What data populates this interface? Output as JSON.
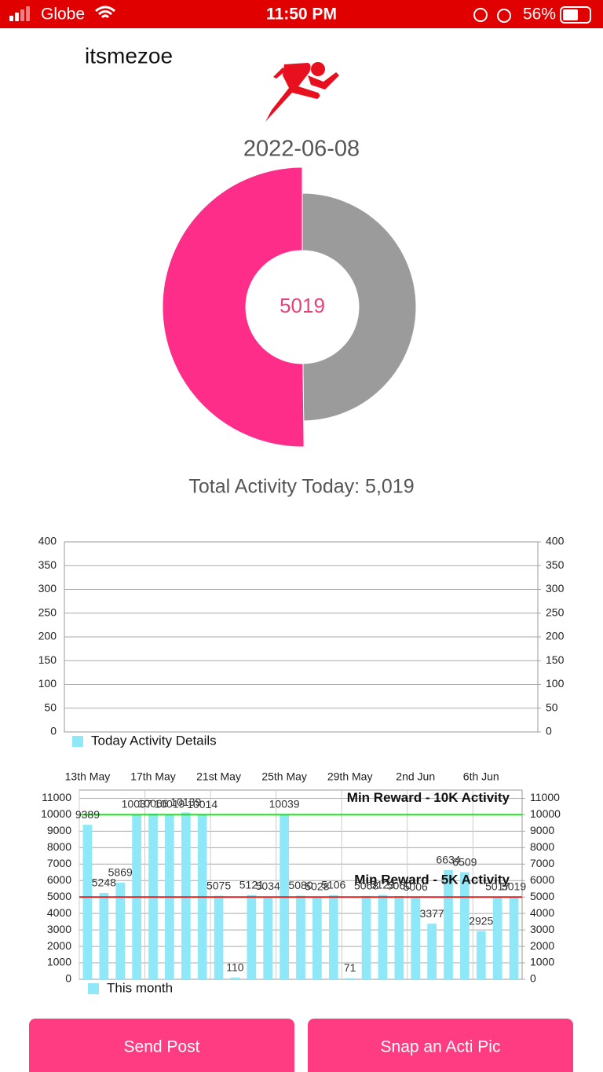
{
  "status_bar": {
    "carrier": "Globe",
    "time": "11:50 PM",
    "battery": "56%"
  },
  "header": {
    "username": "itsmezoe",
    "date": "2022-06-08"
  },
  "summary": "Total Activity Today: 5,019",
  "chart_data": [
    {
      "type": "pie",
      "donut": true,
      "values": [
        5019,
        4981
      ],
      "colors": [
        "#ff2d8a",
        "#9b9b9b"
      ]
    },
    {
      "type": "bar",
      "series": [
        {
          "name": "Today Activity Details",
          "color": "#8ee8f8",
          "values": []
        }
      ],
      "ylim": [
        0,
        400
      ],
      "yticks": [
        0,
        50,
        100,
        150,
        200,
        250,
        300,
        350,
        400
      ],
      "y2lim": [
        0,
        400
      ],
      "y2ticks": [
        0,
        50,
        100,
        150,
        200,
        250,
        300,
        350,
        400
      ],
      "grid": true
    },
    {
      "type": "bar",
      "categories": [
        "13th May",
        null,
        null,
        null,
        "17th May",
        null,
        null,
        null,
        "21st May",
        null,
        null,
        null,
        "25th May",
        null,
        null,
        null,
        "29th May",
        null,
        null,
        null,
        "2nd Jun",
        null,
        null,
        null,
        "6th Jun",
        null,
        null
      ],
      "series": [
        {
          "name": "This month",
          "color": "#8ee8f8",
          "values": [
            9389,
            5248,
            5869,
            10037,
            10066,
            10019,
            10139,
            10014,
            5075,
            110,
            5121,
            5034,
            10039,
            5080,
            5028,
            5106,
            71,
            5068,
            5123,
            5060,
            5006,
            3377,
            6634,
            6509,
            2925,
            5017,
            5019
          ]
        }
      ],
      "ylim": [
        0,
        11500
      ],
      "yticks": [
        0,
        1000,
        2000,
        3000,
        4000,
        5000,
        6000,
        7000,
        8000,
        9000,
        10000,
        11000
      ],
      "y2lim": [
        0,
        11500
      ],
      "y2ticks": [
        0,
        1000,
        2000,
        3000,
        4000,
        5000,
        6000,
        7000,
        8000,
        9000,
        10000,
        11000
      ],
      "reference_lines": [
        {
          "value": 10000,
          "label": "Min Reward - 10K Activity",
          "color": "#1ee01e"
        },
        {
          "value": 5000,
          "label": "Min Reward - 5K Activity",
          "color": "#e02020"
        }
      ],
      "grid": true,
      "show_values": true
    }
  ],
  "buttons": [
    "Send Post",
    "Snap an Acti Pic"
  ]
}
